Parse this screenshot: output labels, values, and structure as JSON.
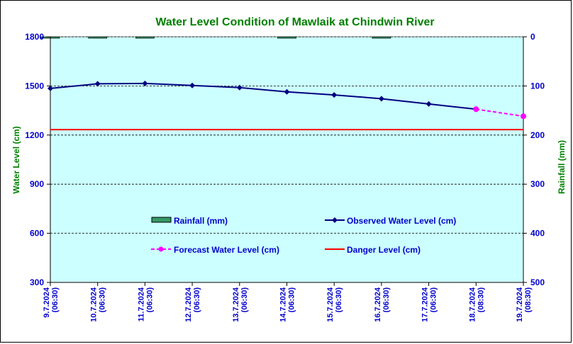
{
  "colors": {
    "plot_bg": "#ccffff",
    "title": "#008000",
    "axis_label": "#008000",
    "tick": "#0000cc",
    "observed": "#000080",
    "forecast": "#ff00ff",
    "danger": "#ff0000",
    "rainfall": "#339966"
  },
  "chart_data": {
    "type": "line",
    "title": "Water Level Condition of Mawlaik at Chindwin River",
    "ylabel_left": "Water Level (cm)",
    "ylabel_right": "Rainfall (mm)",
    "categories": [
      [
        "9.7.2024",
        "(06:30)"
      ],
      [
        "10.7.2024",
        "(06:30)"
      ],
      [
        "11.7.2024",
        "(06:30)"
      ],
      [
        "12.7.2024",
        "(06:30)"
      ],
      [
        "13.7.2024",
        "(06:30)"
      ],
      [
        "14.7.2024",
        "(06:30)"
      ],
      [
        "15.7.2024",
        "(06:30)"
      ],
      [
        "16.7.2024",
        "(06:30)"
      ],
      [
        "17.7.2024",
        "(06:30)"
      ],
      [
        "18.7.2024",
        "(08:30)"
      ],
      [
        "19.7.2024",
        "(08:30)"
      ]
    ],
    "ylim_left": [
      300,
      1800
    ],
    "yticks_left": [
      "300",
      "600",
      "900",
      "1200",
      "1500",
      "1800"
    ],
    "ylim_right": [
      500,
      0
    ],
    "yticks_right": [
      "0",
      "100",
      "200",
      "300",
      "400",
      "500"
    ],
    "grid": "horizontal dashed",
    "series": [
      {
        "name": "Observed Water Level (cm)",
        "values": [
          1485,
          1513,
          1515,
          1503,
          1490,
          1464,
          1445,
          1422,
          1390,
          1358,
          null
        ]
      },
      {
        "name": "Forecast Water Level (cm)",
        "values": [
          null,
          null,
          null,
          null,
          null,
          null,
          null,
          null,
          null,
          1358,
          1315
        ]
      },
      {
        "name": "Danger Level (cm)",
        "values": [
          1233,
          1233,
          1233,
          1233,
          1233,
          1233,
          1233,
          1233,
          1233,
          1233,
          1233
        ]
      },
      {
        "name": "Rainfall (mm)",
        "values": [
          1,
          2,
          2,
          0,
          0,
          1,
          0,
          1,
          0,
          0,
          0
        ]
      }
    ],
    "legend": [
      "Rainfall (mm)",
      "Observed Water Level (cm)",
      "Forecast Water Level (cm)",
      "Danger Level (cm)"
    ]
  }
}
